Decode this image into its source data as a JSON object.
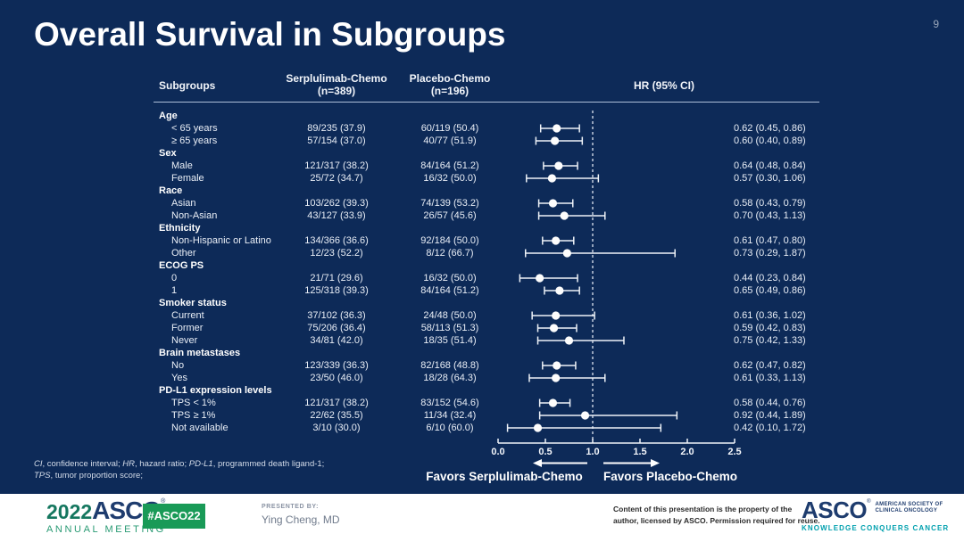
{
  "colors": {
    "background": "#0d2a58",
    "text": "#e9eef6",
    "plot_stroke": "#eef2f8",
    "footer_bg": "#ffffff",
    "logo_green": "#15775f",
    "logo_green_light": "#2a9b74",
    "logo_navy": "#1e3c6e",
    "badge_green": "#199a57",
    "tagline_teal": "#00a0ae",
    "muted": "#9aa7bb"
  },
  "slide": {
    "title": "Overall Survival in Subgroups",
    "page_number": "9"
  },
  "table": {
    "headers": {
      "subgroups": "Subgroups",
      "serp_line1": "Serplulimab-Chemo",
      "serp_line2": "(n=389)",
      "plac_line1": "Placebo-Chemo",
      "plac_line2": "(n=196)",
      "hr": "HR (95% CI)"
    }
  },
  "chart_data": {
    "type": "forest",
    "title": "Overall Survival in Subgroups",
    "columns": [
      "Subgroups",
      "Serplulimab-Chemo (n=389)",
      "Placebo-Chemo (n=196)",
      "HR (95% CI)"
    ],
    "x_axis": {
      "range": [
        0.0,
        2.5
      ],
      "reference_line": 1.0,
      "ticks": [
        {
          "label": "0.0",
          "value": 0.0
        },
        {
          "label": "0.5",
          "value": 0.5
        },
        {
          "label": "1.0",
          "value": 1.0
        },
        {
          "label": "1.5",
          "value": 1.5
        },
        {
          "label": "2.0",
          "value": 2.0
        },
        {
          "label": "2.5",
          "value": 2.5
        }
      ]
    },
    "rows": [
      {
        "type": "group",
        "label": "Age"
      },
      {
        "type": "item",
        "label": "< 65 years",
        "serplulimab": "89/235 (37.9)",
        "placebo": "60/119 (50.4)",
        "hr": 0.62,
        "ci_low": 0.45,
        "ci_high": 0.86,
        "hr_text": "0.62 (0.45, 0.86)"
      },
      {
        "type": "item",
        "label": "≥ 65 years",
        "serplulimab": "57/154 (37.0)",
        "placebo": "40/77 (51.9)",
        "hr": 0.6,
        "ci_low": 0.4,
        "ci_high": 0.89,
        "hr_text": "0.60 (0.40, 0.89)"
      },
      {
        "type": "group",
        "label": "Sex"
      },
      {
        "type": "item",
        "label": "Male",
        "serplulimab": "121/317 (38.2)",
        "placebo": "84/164 (51.2)",
        "hr": 0.64,
        "ci_low": 0.48,
        "ci_high": 0.84,
        "hr_text": "0.64 (0.48, 0.84)"
      },
      {
        "type": "item",
        "label": "Female",
        "serplulimab": "25/72 (34.7)",
        "placebo": "16/32 (50.0)",
        "hr": 0.57,
        "ci_low": 0.3,
        "ci_high": 1.06,
        "hr_text": "0.57 (0.30, 1.06)"
      },
      {
        "type": "group",
        "label": "Race"
      },
      {
        "type": "item",
        "label": "Asian",
        "serplulimab": "103/262 (39.3)",
        "placebo": "74/139 (53.2)",
        "hr": 0.58,
        "ci_low": 0.43,
        "ci_high": 0.79,
        "hr_text": "0.58 (0.43, 0.79)"
      },
      {
        "type": "item",
        "label": "Non-Asian",
        "serplulimab": "43/127 (33.9)",
        "placebo": "26/57 (45.6)",
        "hr": 0.7,
        "ci_low": 0.43,
        "ci_high": 1.13,
        "hr_text": "0.70 (0.43, 1.13)"
      },
      {
        "type": "group",
        "label": "Ethnicity"
      },
      {
        "type": "item",
        "label": "Non-Hispanic or Latino",
        "serplulimab": "134/366 (36.6)",
        "placebo": "92/184 (50.0)",
        "hr": 0.61,
        "ci_low": 0.47,
        "ci_high": 0.8,
        "hr_text": "0.61 (0.47, 0.80)"
      },
      {
        "type": "item",
        "label": "Other",
        "serplulimab": "12/23 (52.2)",
        "placebo": "8/12 (66.7)",
        "hr": 0.73,
        "ci_low": 0.29,
        "ci_high": 1.87,
        "hr_text": "0.73 (0.29, 1.87)"
      },
      {
        "type": "group",
        "label": "ECOG PS"
      },
      {
        "type": "item",
        "label": "0",
        "serplulimab": "21/71 (29.6)",
        "placebo": "16/32 (50.0)",
        "hr": 0.44,
        "ci_low": 0.23,
        "ci_high": 0.84,
        "hr_text": "0.44 (0.23, 0.84)"
      },
      {
        "type": "item",
        "label": "1",
        "serplulimab": "125/318 (39.3)",
        "placebo": "84/164 (51.2)",
        "hr": 0.65,
        "ci_low": 0.49,
        "ci_high": 0.86,
        "hr_text": "0.65 (0.49, 0.86)"
      },
      {
        "type": "group",
        "label": "Smoker status"
      },
      {
        "type": "item",
        "label": "Current",
        "serplulimab": "37/102 (36.3)",
        "placebo": "24/48 (50.0)",
        "hr": 0.61,
        "ci_low": 0.36,
        "ci_high": 1.02,
        "hr_text": "0.61 (0.36, 1.02)"
      },
      {
        "type": "item",
        "label": "Former",
        "serplulimab": "75/206 (36.4)",
        "placebo": "58/113 (51.3)",
        "hr": 0.59,
        "ci_low": 0.42,
        "ci_high": 0.83,
        "hr_text": "0.59 (0.42, 0.83)"
      },
      {
        "type": "item",
        "label": "Never",
        "serplulimab": "34/81 (42.0)",
        "placebo": "18/35 (51.4)",
        "hr": 0.75,
        "ci_low": 0.42,
        "ci_high": 1.33,
        "hr_text": "0.75 (0.42, 1.33)"
      },
      {
        "type": "group",
        "label": "Brain metastases"
      },
      {
        "type": "item",
        "label": "No",
        "serplulimab": "123/339 (36.3)",
        "placebo": "82/168 (48.8)",
        "hr": 0.62,
        "ci_low": 0.47,
        "ci_high": 0.82,
        "hr_text": "0.62 (0.47, 0.82)"
      },
      {
        "type": "item",
        "label": "Yes",
        "serplulimab": "23/50 (46.0)",
        "placebo": "18/28 (64.3)",
        "hr": 0.61,
        "ci_low": 0.33,
        "ci_high": 1.13,
        "hr_text": "0.61 (0.33, 1.13)"
      },
      {
        "type": "group",
        "label": "PD-L1 expression levels"
      },
      {
        "type": "item",
        "label": "TPS < 1%",
        "serplulimab": "121/317 (38.2)",
        "placebo": "83/152 (54.6)",
        "hr": 0.58,
        "ci_low": 0.44,
        "ci_high": 0.76,
        "hr_text": "0.58 (0.44, 0.76)"
      },
      {
        "type": "item",
        "label": "TPS ≥ 1%",
        "serplulimab": "22/62 (35.5)",
        "placebo": "11/34 (32.4)",
        "hr": 0.92,
        "ci_low": 0.44,
        "ci_high": 1.89,
        "hr_text": "0.92 (0.44, 1.89)"
      },
      {
        "type": "item",
        "label": "Not available",
        "serplulimab": "3/10 (30.0)",
        "placebo": "6/10 (60.0)",
        "hr": 0.42,
        "ci_low": 0.1,
        "ci_high": 1.72,
        "hr_text": "0.42 (0.10, 1.72)"
      }
    ]
  },
  "favors": {
    "left_label": "Favors Serplulimab-Chemo",
    "right_label": "Favors Placebo-Chemo"
  },
  "footnote": {
    "line1": [
      {
        "text": "CI",
        "italic": true
      },
      {
        "text": ", confidence interval; ",
        "italic": false
      },
      {
        "text": "HR",
        "italic": true
      },
      {
        "text": ", hazard ratio; ",
        "italic": false
      },
      {
        "text": "PD-L1",
        "italic": true
      },
      {
        "text": ", programmed death ligand-1;",
        "italic": false
      }
    ],
    "line2": [
      {
        "text": "TPS",
        "italic": true
      },
      {
        "text": ", tumor proportion score;",
        "italic": false
      }
    ]
  },
  "footer": {
    "logo_year": "2022",
    "logo_asco": "ASCO",
    "logo_reg": "®",
    "logo_annual": "ANNUAL MEETING",
    "hashtag": "#ASCO22",
    "presented_by_label": "PRESENTED BY:",
    "presenter": "Ying Cheng, MD",
    "rights_line1": "Content of this presentation is the property of the",
    "rights_line2": "author, licensed by ASCO. Permission required for reuse.",
    "right_asco": "ASCO",
    "right_reg": "®",
    "right_society_line1": "AMERICAN SOCIETY OF",
    "right_society_line2": "CLINICAL ONCOLOGY",
    "right_tagline": "KNOWLEDGE CONQUERS CANCER"
  }
}
